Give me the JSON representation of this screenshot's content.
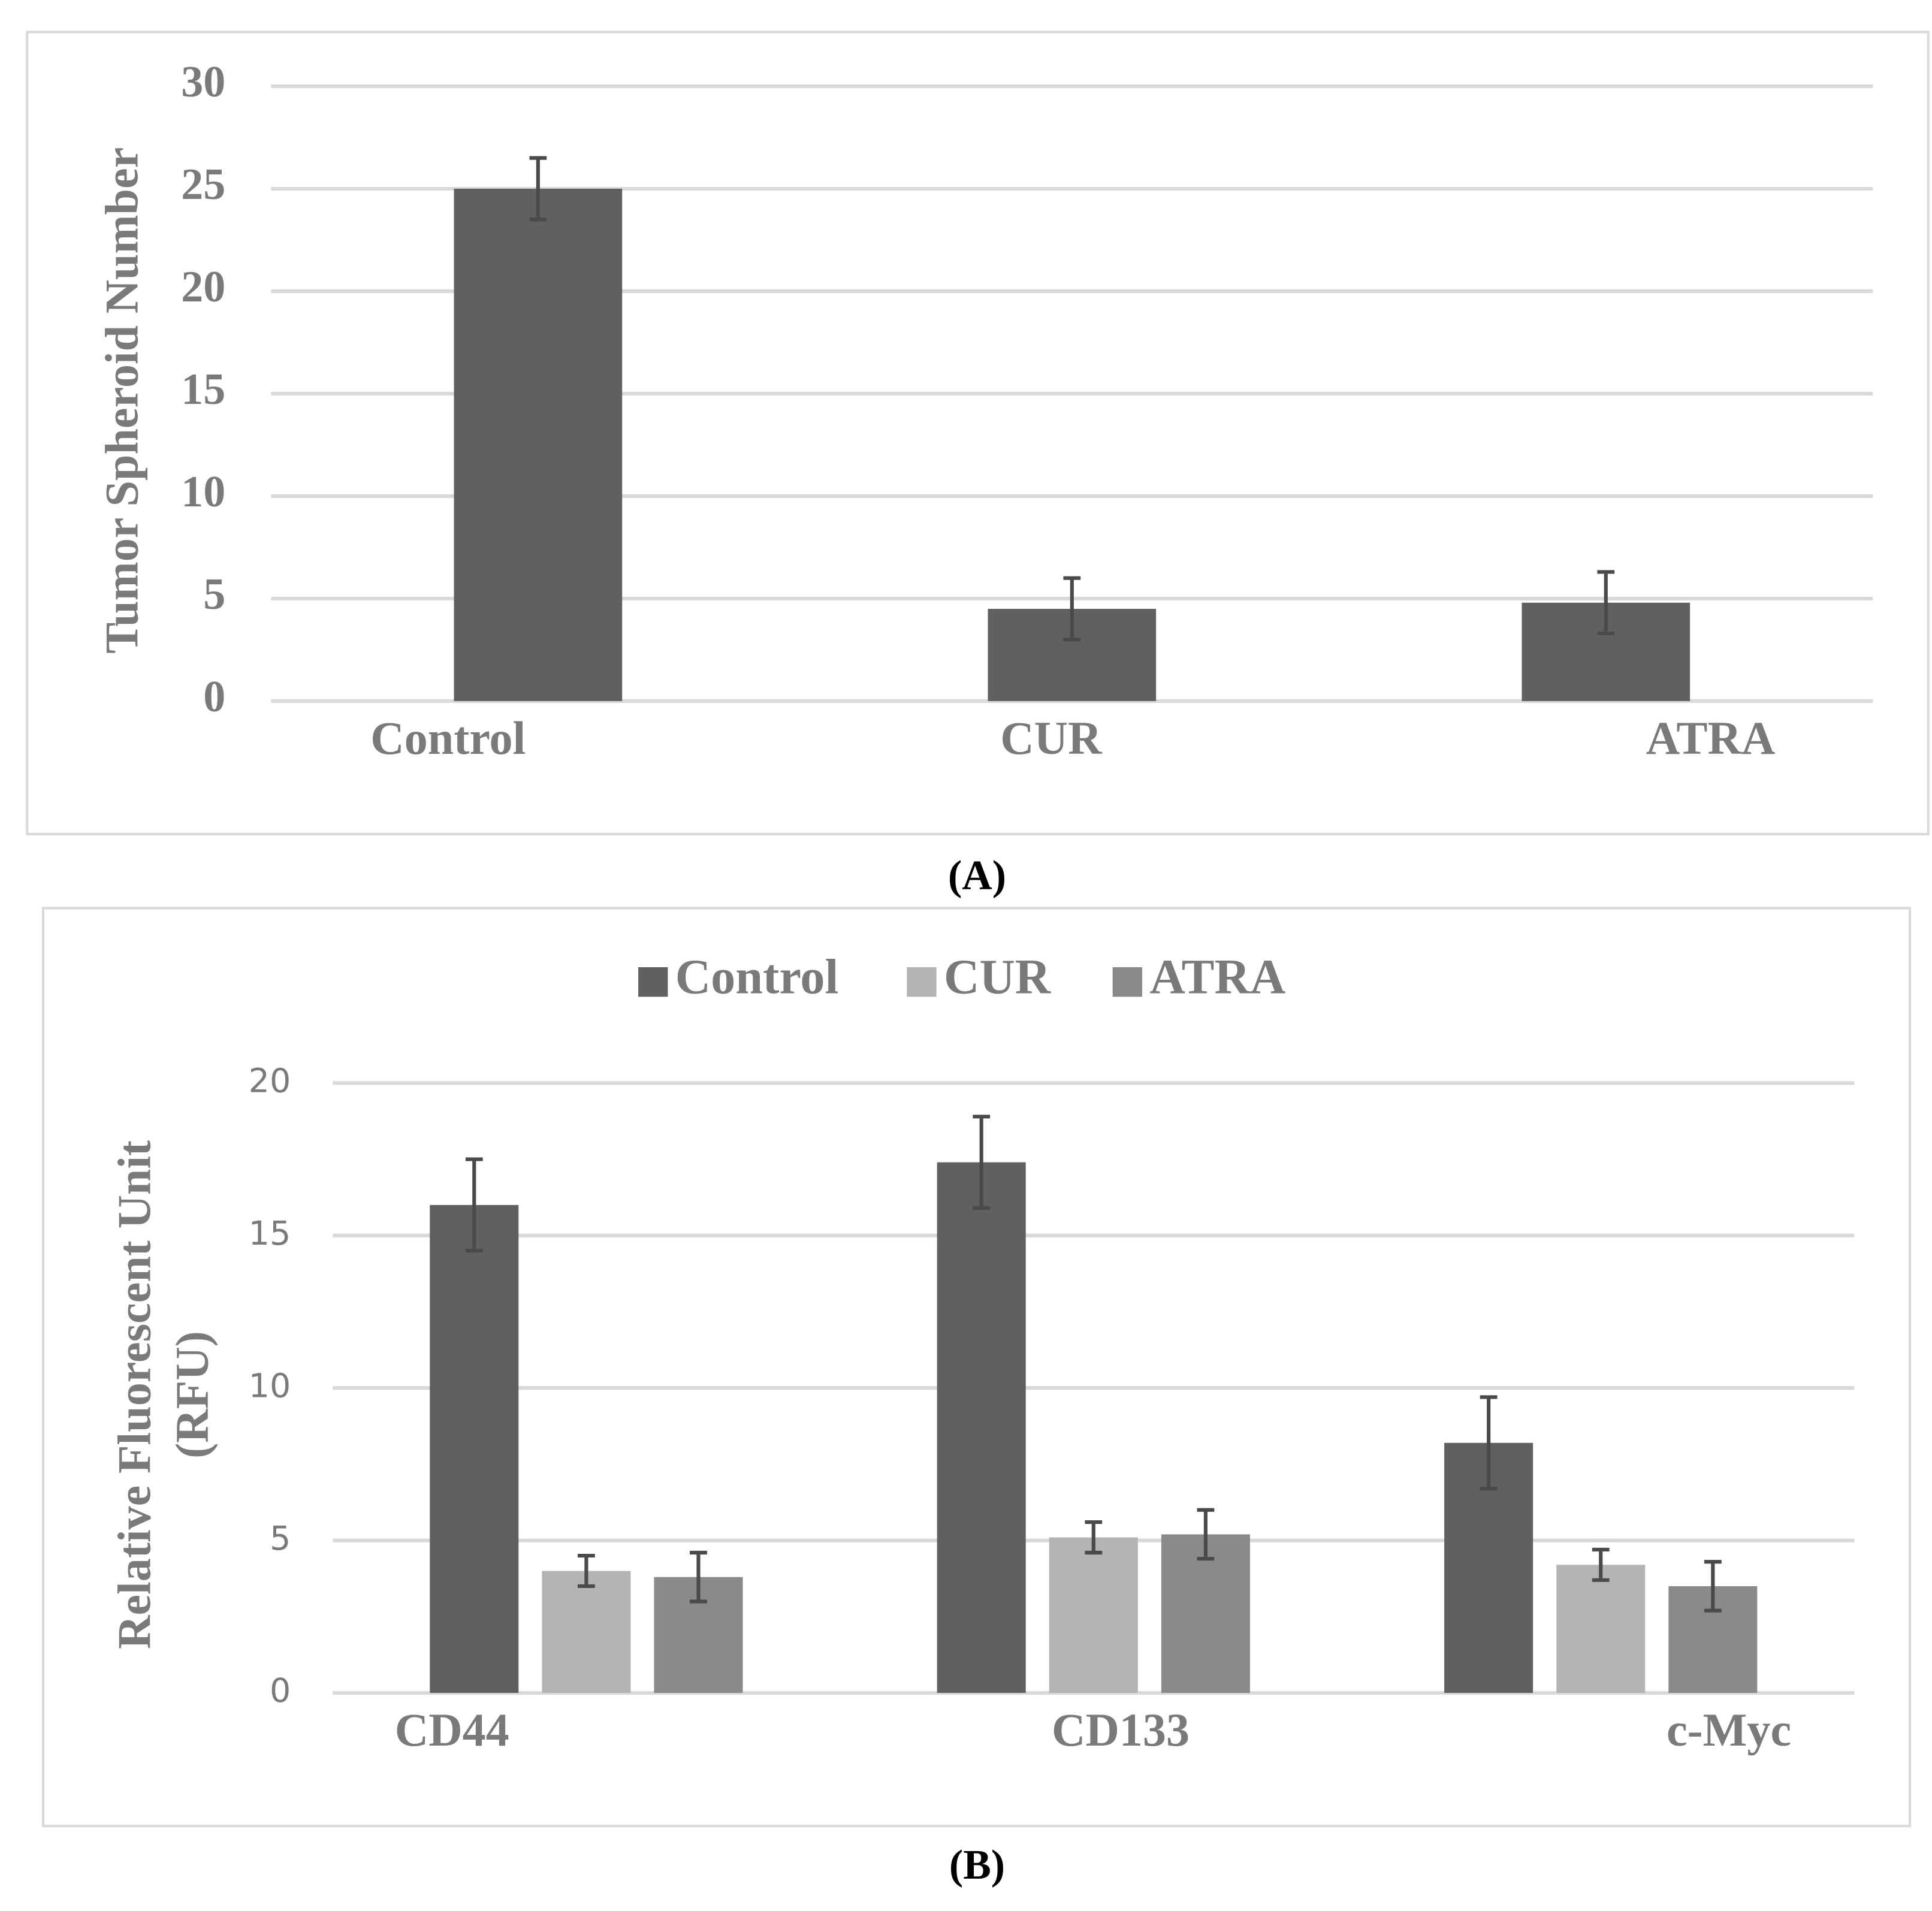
{
  "chart_data": [
    {
      "type": "bar",
      "caption": "(A)",
      "ylabel": [
        "Tumor Spheroid Number"
      ],
      "categories": [
        "Control",
        "CUR",
        "ATRA"
      ],
      "values": [
        25,
        4.5,
        4.8
      ],
      "errors": [
        1.5,
        1.5,
        1.5
      ],
      "color": "#606060",
      "ylim": [
        0,
        30
      ],
      "yticks": [
        0,
        5,
        10,
        15,
        20,
        25,
        30
      ],
      "grid": true
    },
    {
      "type": "grouped_bar",
      "caption": "(B)",
      "ylabel": [
        "Relative Fluorescent Unit",
        "(RFU)"
      ],
      "categories": [
        "CD44",
        "CD133",
        "c-Myc"
      ],
      "series": [
        {
          "name": "Control",
          "color": "#606060",
          "values": [
            16,
            17.4,
            8.2
          ],
          "errors": [
            1.5,
            1.5,
            1.5
          ]
        },
        {
          "name": "CUR",
          "color": "#b4b4b4",
          "values": [
            4,
            5.1,
            4.2
          ],
          "errors": [
            0.5,
            0.5,
            0.5
          ]
        },
        {
          "name": "ATRA",
          "color": "#8a8a8a",
          "values": [
            3.8,
            5.2,
            3.5
          ],
          "errors": [
            0.8,
            0.8,
            0.8
          ]
        }
      ],
      "ylim": [
        0,
        20
      ],
      "yticks": [
        0,
        5,
        10,
        15,
        20
      ],
      "grid": true,
      "legend": "top"
    }
  ]
}
